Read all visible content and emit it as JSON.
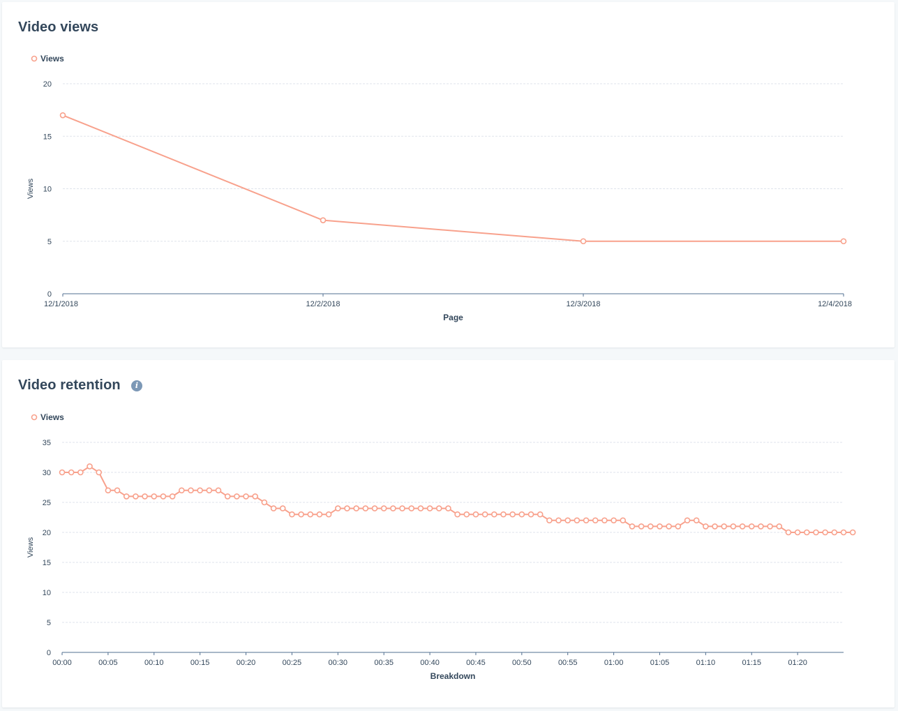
{
  "colors": {
    "series": "#f8a18c",
    "axis": "#516f90",
    "grid": "#dfe3eb",
    "text": "#33475b"
  },
  "cards": {
    "views": {
      "title": "Video views"
    },
    "retention": {
      "title": "Video retention",
      "info_icon": "info-icon"
    }
  },
  "chart_data": [
    {
      "type": "line",
      "title": "Video views",
      "legend": "Views",
      "legend_position": "top-left",
      "xlabel": "Page",
      "ylabel": "Views",
      "categories": [
        "12/1/2018",
        "12/2/2018",
        "12/3/2018",
        "12/4/2018"
      ],
      "series": [
        {
          "name": "Views",
          "values": [
            17,
            7,
            5,
            5
          ]
        }
      ],
      "ylim": [
        0,
        20
      ],
      "yticks": [
        0,
        5,
        10,
        15,
        20
      ],
      "grid": true
    },
    {
      "type": "line",
      "title": "Video retention",
      "legend": "Views",
      "legend_position": "top-left",
      "xlabel": "Breakdown",
      "ylabel": "Views",
      "xlim": [
        0,
        85
      ],
      "xticks": [
        {
          "v": 0,
          "label": "00:00"
        },
        {
          "v": 5,
          "label": "00:05"
        },
        {
          "v": 10,
          "label": "00:10"
        },
        {
          "v": 15,
          "label": "00:15"
        },
        {
          "v": 20,
          "label": "00:20"
        },
        {
          "v": 25,
          "label": "00:25"
        },
        {
          "v": 30,
          "label": "00:30"
        },
        {
          "v": 35,
          "label": "00:35"
        },
        {
          "v": 40,
          "label": "00:40"
        },
        {
          "v": 45,
          "label": "00:45"
        },
        {
          "v": 50,
          "label": "00:50"
        },
        {
          "v": 55,
          "label": "00:55"
        },
        {
          "v": 60,
          "label": "01:00"
        },
        {
          "v": 65,
          "label": "01:05"
        },
        {
          "v": 70,
          "label": "01:10"
        },
        {
          "v": 75,
          "label": "01:15"
        },
        {
          "v": 80,
          "label": "01:20"
        }
      ],
      "series": [
        {
          "name": "Views",
          "values": [
            30,
            30,
            30,
            31,
            30,
            27,
            27,
            26,
            26,
            26,
            26,
            26,
            26,
            27,
            27,
            27,
            27,
            27,
            26,
            26,
            26,
            26,
            25,
            24,
            24,
            23,
            23,
            23,
            23,
            23,
            24,
            24,
            24,
            24,
            24,
            24,
            24,
            24,
            24,
            24,
            24,
            24,
            24,
            23,
            23,
            23,
            23,
            23,
            23,
            23,
            23,
            23,
            23,
            22,
            22,
            22,
            22,
            22,
            22,
            22,
            22,
            22,
            21,
            21,
            21,
            21,
            21,
            21,
            22,
            22,
            21,
            21,
            21,
            21,
            21,
            21,
            21,
            21,
            21,
            20,
            20,
            20,
            20,
            20,
            20,
            20,
            20
          ]
        }
      ],
      "ylim": [
        0,
        35
      ],
      "yticks": [
        0,
        5,
        10,
        15,
        20,
        25,
        30,
        35
      ],
      "grid": true
    }
  ]
}
